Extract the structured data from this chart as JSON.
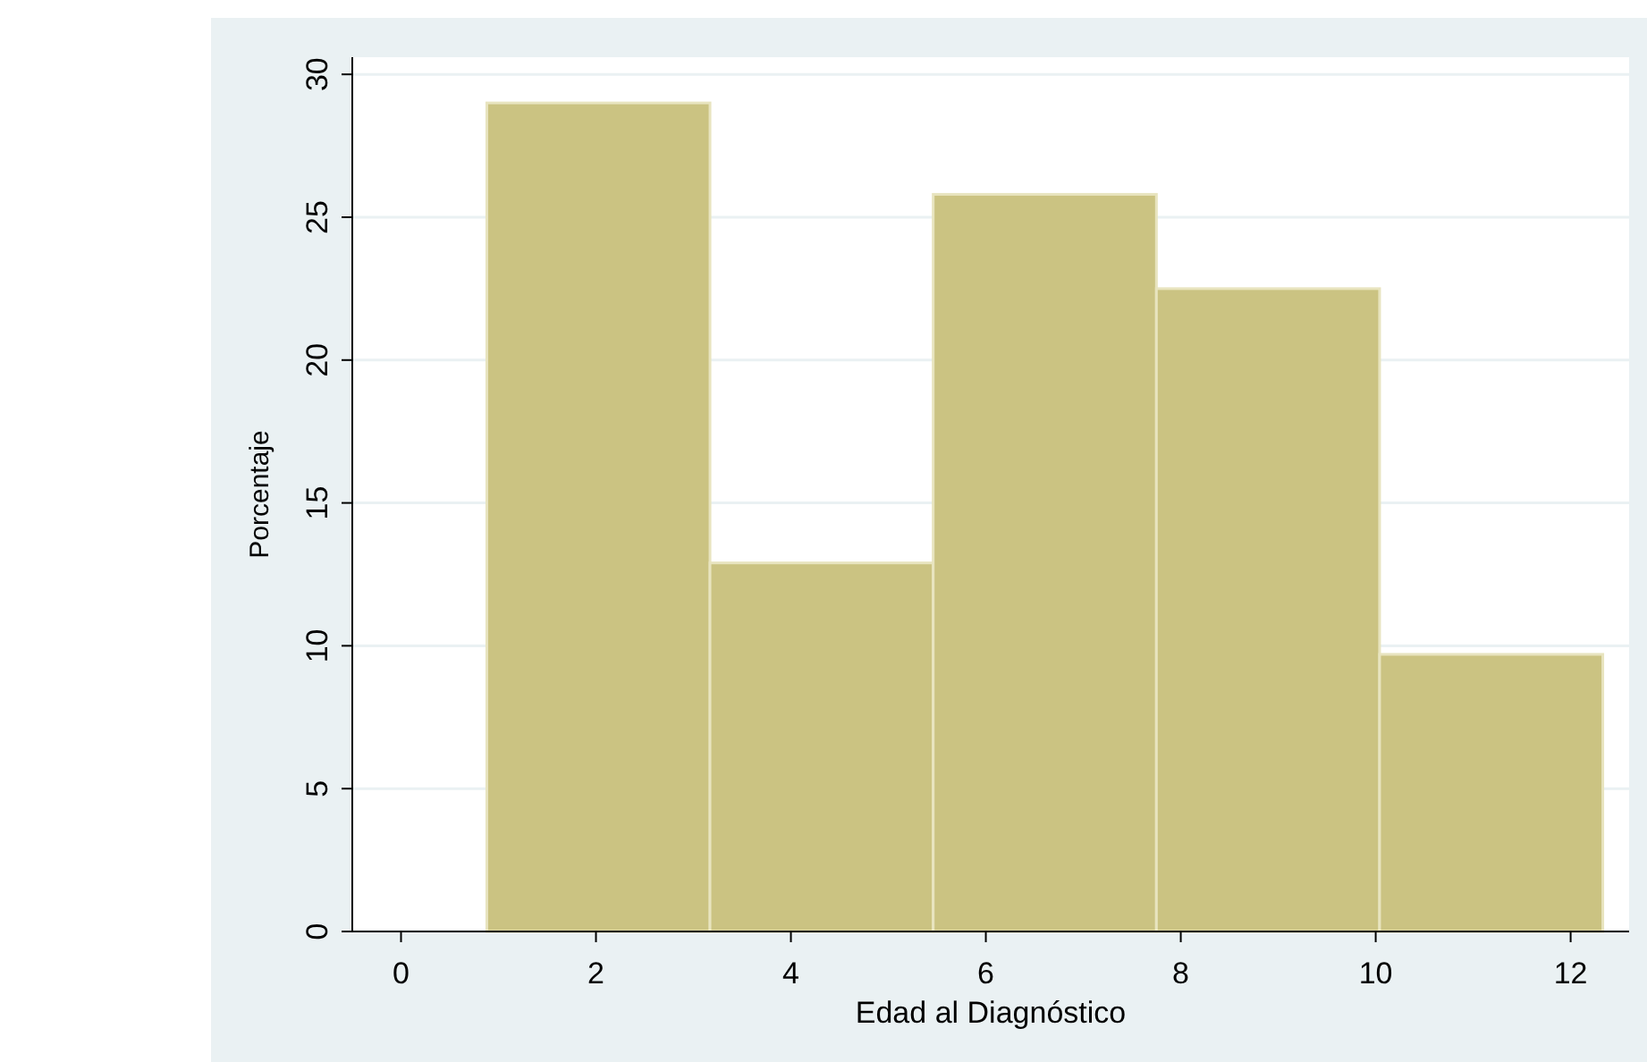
{
  "chart_data": {
    "type": "histogram",
    "xlabel": "Edad al Diagnóstico",
    "ylabel": "Porcentaje",
    "bins": [
      0.88,
      3.17,
      5.46,
      7.75,
      10.04,
      12.33
    ],
    "values": [
      29,
      12.9,
      25.8,
      22.5,
      9.7
    ],
    "color": "#cbc382",
    "xlim": [
      -0.5,
      12.6
    ],
    "xticks": [
      0,
      2,
      4,
      6,
      8,
      10,
      12
    ],
    "ylim": [
      0,
      30.6
    ],
    "yticks": [
      0,
      5,
      10,
      15,
      20,
      25,
      30
    ],
    "grid": "y"
  }
}
